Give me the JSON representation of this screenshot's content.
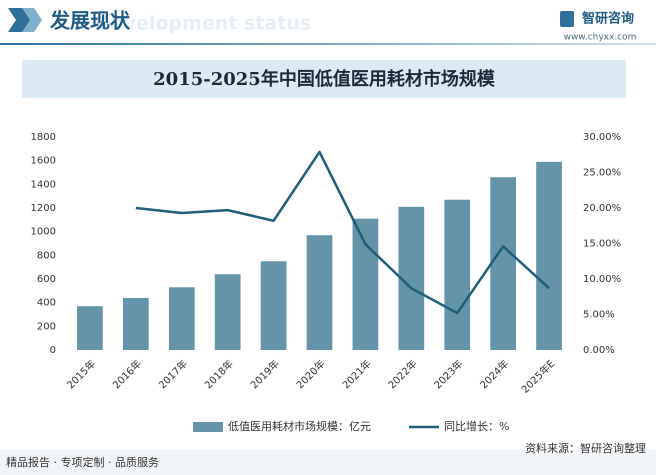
{
  "header": {
    "title": "发展现状",
    "subtitle": "Development status",
    "brand": "智研咨询",
    "url": "www.chyxx.com"
  },
  "chart_data": {
    "type": "bar",
    "title": "2015-2025年中国低值医用耗材市场规模",
    "categories": [
      "2015年",
      "2016年",
      "2017年",
      "2018年",
      "2019年",
      "2020年",
      "2021年",
      "2022年",
      "2023年",
      "2024年",
      "2025年E"
    ],
    "series": [
      {
        "name": "低值医用耗材市场规模：亿元",
        "type": "bar",
        "color": "#6494aa",
        "values": [
          370,
          440,
          530,
          640,
          750,
          970,
          1110,
          1210,
          1270,
          1460,
          1590
        ]
      },
      {
        "name": "同比增长：%",
        "type": "line",
        "axis": "y2",
        "color": "#1d5f7a",
        "values": [
          null,
          20.0,
          19.3,
          19.7,
          18.2,
          27.9,
          14.9,
          8.7,
          5.2,
          14.6,
          8.7
        ]
      }
    ],
    "ylim": [
      0,
      1800
    ],
    "yticks": [
      0,
      200,
      400,
      600,
      800,
      1000,
      1200,
      1400,
      1600,
      1800
    ],
    "y2lim": [
      0,
      30
    ],
    "y2ticks": [
      {
        "value": 0,
        "label": "0.00%"
      },
      {
        "value": 5,
        "label": "5.00%"
      },
      {
        "value": 10,
        "label": "10.00%"
      },
      {
        "value": 15,
        "label": "15.00%"
      },
      {
        "value": 20,
        "label": "20.00%"
      },
      {
        "value": 25,
        "label": "25.00%"
      },
      {
        "value": 30,
        "label": "30.00%"
      }
    ],
    "legend": "bottom"
  },
  "footer": {
    "left": "精品报告 · 专项定制 · 品质服务",
    "source": "资料来源：智研咨询整理"
  }
}
